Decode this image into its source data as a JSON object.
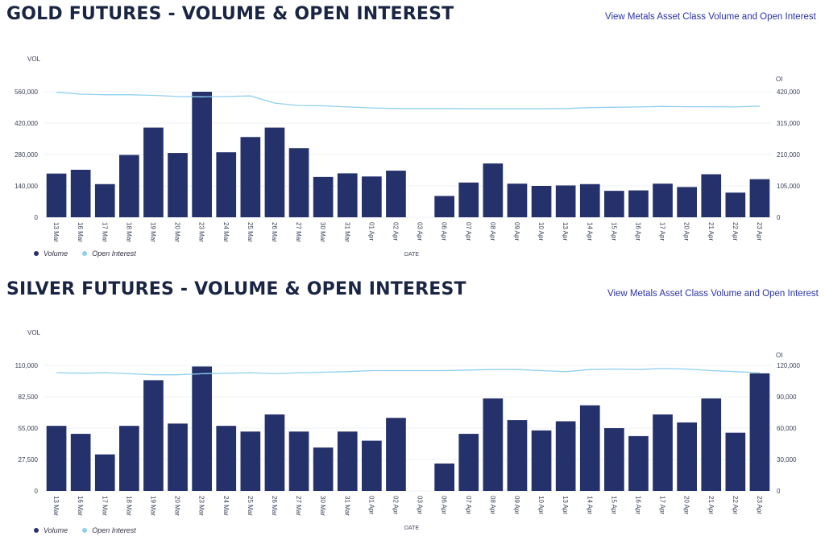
{
  "colors": {
    "volume": "#25316b",
    "open_interest": "#8fd0ee",
    "grid": "#eef0f4",
    "axis_text": "#3a4258"
  },
  "charts": [
    {
      "title": "GOLD FUTURES - VOLUME & OPEN INTEREST",
      "link_text": "View Metals Asset Class Volume and Open Interest",
      "left_axis_label": "VOL",
      "right_axis_label": "OI",
      "x_axis_label": "DATE",
      "legend": {
        "volume": "Volume",
        "open_interest": "Open Interest"
      },
      "left_ticks": [
        "0",
        "140,000",
        "280,000",
        "420,000",
        "560,000"
      ],
      "right_ticks": [
        "0",
        "105,000",
        "210,000",
        "315,000",
        "420,000"
      ]
    },
    {
      "title": "SILVER FUTURES - VOLUME & OPEN INTEREST",
      "link_text": "View Metals Asset Class Volume and Open Interest",
      "left_axis_label": "VOL",
      "right_axis_label": "OI",
      "x_axis_label": "DATE",
      "legend": {
        "volume": "Volume",
        "open_interest": "Open Interest"
      },
      "left_ticks": [
        "0",
        "27,500",
        "55,000",
        "82,500",
        "110,000"
      ],
      "right_ticks": [
        "0",
        "30,000",
        "60,000",
        "90,000",
        "120,000"
      ]
    }
  ],
  "chart_data": [
    {
      "type": "bar",
      "title": "GOLD FUTURES - VOLUME & OPEN INTEREST",
      "xlabel": "DATE",
      "ylabel": "VOL",
      "y2label": "OI",
      "ylim": [
        0,
        560000
      ],
      "y2lim": [
        0,
        420000
      ],
      "categories": [
        "13 Mar",
        "16 Mar",
        "17 Mar",
        "18 Mar",
        "19 Mar",
        "20 Mar",
        "23 Mar",
        "24 Mar",
        "25 Mar",
        "26 Mar",
        "27 Mar",
        "30 Mar",
        "31 Mar",
        "01 Apr",
        "02 Apr",
        "03 Apr",
        "06 Apr",
        "07 Apr",
        "08 Apr",
        "09 Apr",
        "10 Apr",
        "13 Apr",
        "14 Apr",
        "15 Apr",
        "16 Apr",
        "17 Apr",
        "20 Apr",
        "21 Apr",
        "22 Apr",
        "23 Apr"
      ],
      "series": [
        {
          "name": "Volume",
          "type": "bar",
          "axis": "left",
          "values": [
            195000,
            212000,
            148000,
            278000,
            400000,
            287000,
            560000,
            290000,
            358000,
            400000,
            308000,
            180000,
            196000,
            182000,
            208000,
            0,
            95000,
            155000,
            240000,
            150000,
            140000,
            142000,
            148000,
            118000,
            120000,
            150000,
            135000,
            192000,
            110000,
            170000
          ]
        },
        {
          "name": "Open Interest",
          "type": "line",
          "axis": "right",
          "values": [
            418000,
            412000,
            410000,
            410000,
            408000,
            404000,
            403000,
            404000,
            406000,
            382000,
            374000,
            373000,
            369000,
            366000,
            364000,
            364000,
            364000,
            363000,
            363000,
            363000,
            363000,
            364000,
            367000,
            368000,
            369000,
            371000,
            370000,
            370000,
            369000,
            372000
          ]
        }
      ],
      "grid": true,
      "legend": "bottom-left"
    },
    {
      "type": "bar",
      "title": "SILVER FUTURES - VOLUME & OPEN INTEREST",
      "xlabel": "DATE",
      "ylabel": "VOL",
      "y2label": "OI",
      "ylim": [
        0,
        110000
      ],
      "y2lim": [
        0,
        120000
      ],
      "categories": [
        "13 Mar",
        "16 Mar",
        "17 Mar",
        "18 Mar",
        "19 Mar",
        "20 Mar",
        "23 Mar",
        "24 Mar",
        "25 Mar",
        "26 Mar",
        "27 Mar",
        "30 Mar",
        "31 Mar",
        "01 Apr",
        "02 Apr",
        "03 Apr",
        "06 Apr",
        "07 Apr",
        "08 Apr",
        "09 Apr",
        "10 Apr",
        "13 Apr",
        "14 Apr",
        "15 Apr",
        "16 Apr",
        "17 Apr",
        "20 Apr",
        "21 Apr",
        "22 Apr",
        "23 Apr"
      ],
      "series": [
        {
          "name": "Volume",
          "type": "bar",
          "axis": "left",
          "values": [
            57000,
            50000,
            32000,
            57000,
            97000,
            59000,
            109000,
            57000,
            52000,
            67000,
            52000,
            38000,
            52000,
            44000,
            64000,
            0,
            24000,
            50000,
            81000,
            62000,
            53000,
            61000,
            75000,
            55000,
            48000,
            67000,
            60000,
            81000,
            51000,
            103000
          ]
        },
        {
          "name": "Open Interest",
          "type": "line",
          "axis": "right",
          "values": [
            113000,
            112500,
            113000,
            112000,
            111000,
            111000,
            112000,
            112500,
            113000,
            112000,
            113000,
            113500,
            114000,
            115000,
            115000,
            115000,
            115000,
            115500,
            116000,
            116000,
            115000,
            114000,
            116000,
            116500,
            116000,
            117000,
            116500,
            115000,
            114000,
            113000
          ]
        }
      ],
      "grid": true,
      "legend": "bottom-left"
    }
  ]
}
